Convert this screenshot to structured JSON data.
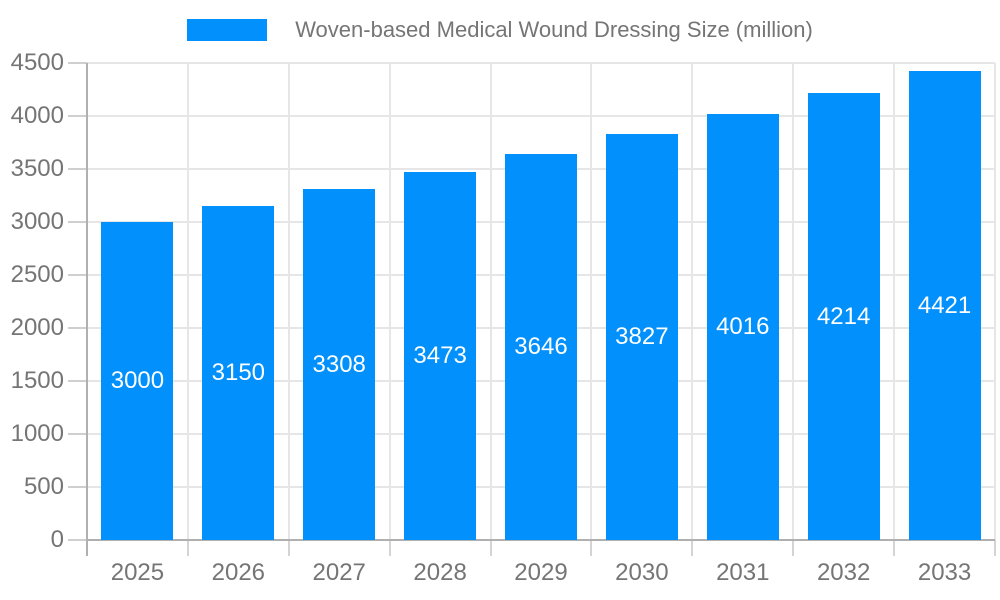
{
  "legend": {
    "label": "Woven-based Medical Wound Dressing Size (million)",
    "swatch_color": "#0190fc"
  },
  "chart_data": {
    "type": "bar",
    "title": "Woven-based Medical Wound Dressing Size (million)",
    "categories": [
      "2025",
      "2026",
      "2027",
      "2028",
      "2029",
      "2030",
      "2031",
      "2032",
      "2033"
    ],
    "values": [
      3000,
      3150,
      3308,
      3473,
      3646,
      3827,
      4016,
      4214,
      4421
    ],
    "xlabel": "",
    "ylabel": "",
    "ylim": [
      0,
      4500
    ],
    "yticks": [
      0,
      500,
      1000,
      1500,
      2000,
      2500,
      3000,
      3500,
      4000,
      4500
    ],
    "grid": true,
    "legend_position": "top",
    "bar_color": "#0190fc",
    "annotation_color": "#ffffff",
    "axis_text_color": "#757575",
    "gridline_color": "#e6e6e6",
    "axis_line_color": "#b0b0b0"
  }
}
